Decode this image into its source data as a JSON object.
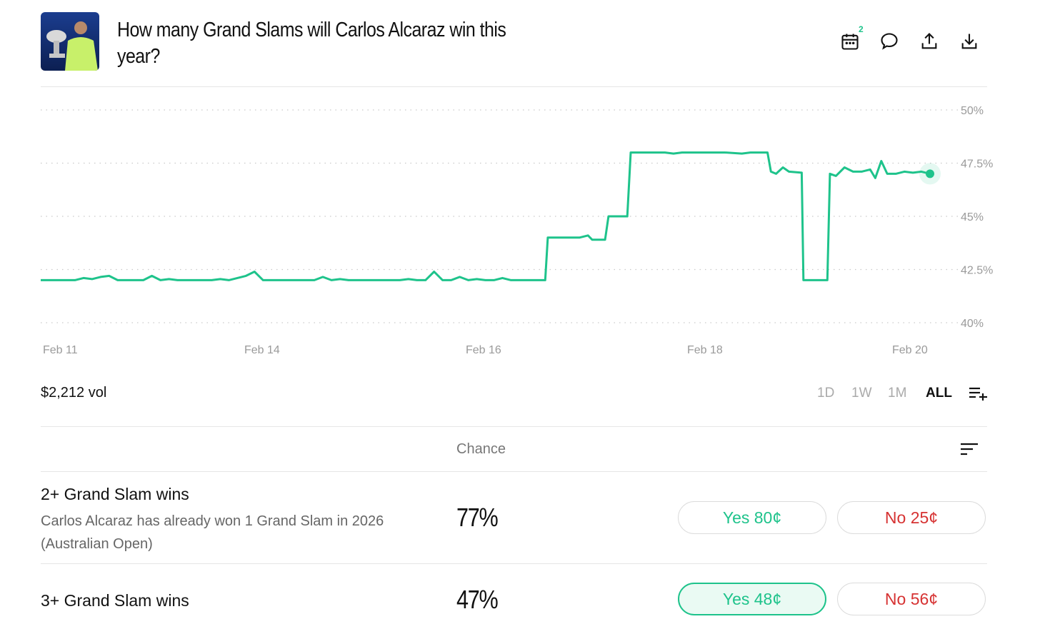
{
  "header": {
    "title": "How many Grand Slams will Carlos Alcaraz win this year?",
    "calendar_badge": "2",
    "icons": [
      "calendar-icon",
      "comment-icon",
      "share-icon",
      "download-icon"
    ]
  },
  "chart_data": {
    "type": "line",
    "x_labels": [
      "Feb 11",
      "Feb 14",
      "Feb 16",
      "Feb 18",
      "Feb 20"
    ],
    "y_ticks": [
      "50%",
      "47.5%",
      "45%",
      "42.5%",
      "40%"
    ],
    "ylim": [
      40,
      50
    ],
    "grid": true,
    "color": "#1ec38b",
    "points": [
      [
        0,
        42.0
      ],
      [
        4,
        42.0
      ],
      [
        5,
        42.1
      ],
      [
        6,
        42.05
      ],
      [
        7,
        42.15
      ],
      [
        8,
        42.2
      ],
      [
        9,
        42.0
      ],
      [
        10,
        42.0
      ],
      [
        11,
        42.0
      ],
      [
        12,
        42.0
      ],
      [
        13,
        42.2
      ],
      [
        14,
        42.0
      ],
      [
        15,
        42.05
      ],
      [
        16,
        42.0
      ],
      [
        17,
        42.0
      ],
      [
        18,
        42.0
      ],
      [
        20,
        42.0
      ],
      [
        21,
        42.05
      ],
      [
        22,
        42.0
      ],
      [
        23,
        42.1
      ],
      [
        24,
        42.2
      ],
      [
        25,
        42.4
      ],
      [
        26,
        42.0
      ],
      [
        28,
        42.0
      ],
      [
        30,
        42.0
      ],
      [
        32,
        42.0
      ],
      [
        33,
        42.15
      ],
      [
        34,
        42.0
      ],
      [
        35,
        42.05
      ],
      [
        36,
        42.0
      ],
      [
        40,
        42.0
      ],
      [
        42,
        42.0
      ],
      [
        43,
        42.05
      ],
      [
        44,
        42.0
      ],
      [
        45,
        42.0
      ],
      [
        46,
        42.4
      ],
      [
        47,
        42.0
      ],
      [
        48,
        42.0
      ],
      [
        49,
        42.15
      ],
      [
        50,
        42.0
      ],
      [
        51,
        42.05
      ],
      [
        52,
        42.0
      ],
      [
        53,
        42.0
      ],
      [
        54,
        42.1
      ],
      [
        55,
        42.0
      ],
      [
        58,
        42.0
      ],
      [
        59,
        42.0
      ],
      [
        59.3,
        44.0
      ],
      [
        62,
        44.0
      ],
      [
        63,
        44.0
      ],
      [
        64,
        44.1
      ],
      [
        64.5,
        43.9
      ],
      [
        66,
        43.9
      ],
      [
        66.4,
        45.0
      ],
      [
        68,
        45.0
      ],
      [
        68.6,
        45.0
      ],
      [
        69,
        48.0
      ],
      [
        70,
        48.0
      ],
      [
        72,
        48.0
      ],
      [
        73,
        48.0
      ],
      [
        74,
        47.95
      ],
      [
        75,
        48.0
      ],
      [
        77,
        48.0
      ],
      [
        80,
        48.0
      ],
      [
        82,
        47.95
      ],
      [
        83,
        48.0
      ],
      [
        85,
        48.0
      ],
      [
        85.4,
        47.1
      ],
      [
        86,
        47.0
      ],
      [
        86.8,
        47.3
      ],
      [
        87.5,
        47.1
      ],
      [
        89,
        47.05
      ],
      [
        89.2,
        42.0
      ],
      [
        92,
        42.0
      ],
      [
        92.3,
        47.0
      ],
      [
        93,
        46.9
      ],
      [
        94,
        47.3
      ],
      [
        95,
        47.1
      ],
      [
        96,
        47.1
      ],
      [
        97,
        47.2
      ],
      [
        97.6,
        46.8
      ],
      [
        98.3,
        47.6
      ],
      [
        99,
        47.0
      ],
      [
        100,
        47.0
      ],
      [
        101,
        47.1
      ],
      [
        102,
        47.05
      ],
      [
        103,
        47.1
      ],
      [
        104,
        47.0
      ]
    ]
  },
  "volume": "$2,212 vol",
  "ranges": [
    "1D",
    "1W",
    "1M",
    "ALL"
  ],
  "active_range": "ALL",
  "table": {
    "chance_header": "Chance",
    "rows": [
      {
        "title": "2+ Grand Slam wins",
        "subtitle": "Carlos Alcaraz has already won 1 Grand Slam in 2026 (Australian Open)",
        "chance": "77%",
        "yes": "Yes 80¢",
        "no": "No 25¢"
      },
      {
        "title": "3+ Grand Slam wins",
        "subtitle": "",
        "chance": "47%",
        "yes": "Yes 48¢",
        "no": "No 56¢"
      }
    ]
  }
}
